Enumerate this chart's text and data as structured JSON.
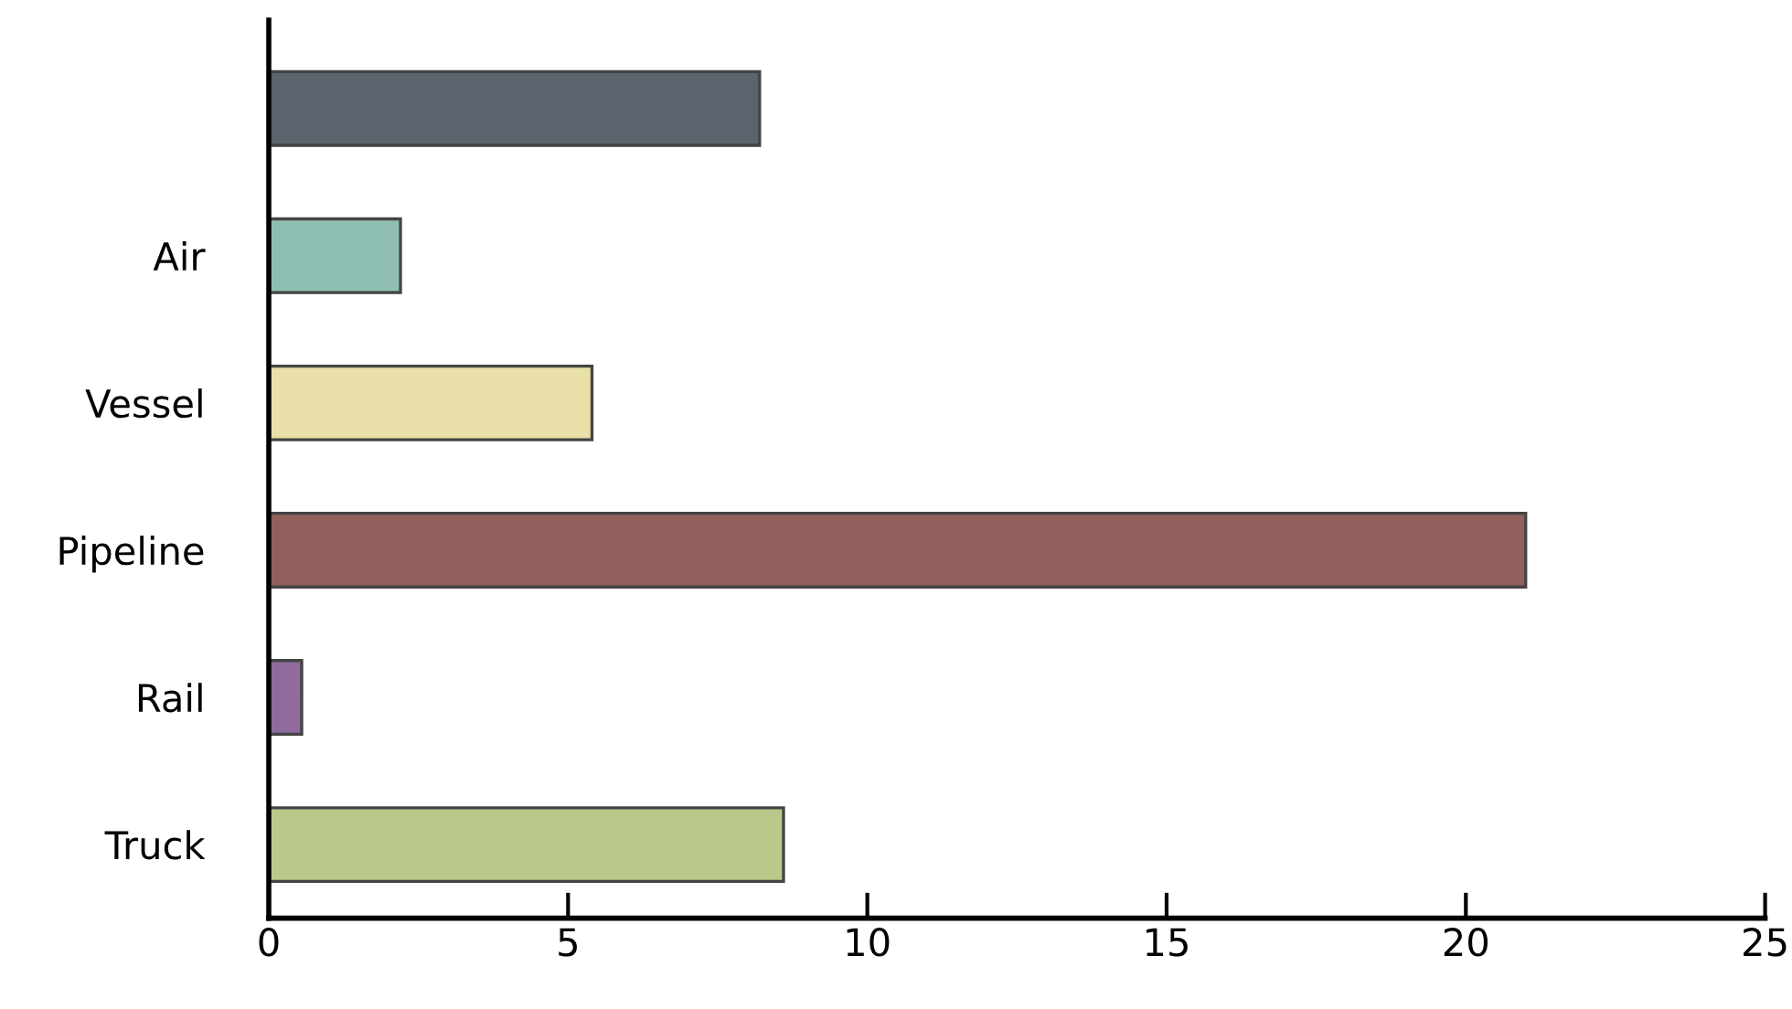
{
  "chart_data": {
    "type": "bar",
    "orientation": "horizontal",
    "categories": [
      null,
      "Air",
      "Vessel",
      "Pipeline",
      "Rail",
      "Truck"
    ],
    "values": [
      8.2,
      2.2,
      5.4,
      21.0,
      0.55,
      8.6
    ],
    "colors": [
      "#5b636c",
      "#8fbfb2",
      "#e8e0a8",
      "#925f5c",
      "#8f6b9e",
      "#b8c98a"
    ],
    "xlim": [
      0,
      25
    ],
    "xticks": [
      0,
      5,
      10,
      15,
      20,
      25
    ],
    "grid": false
  }
}
